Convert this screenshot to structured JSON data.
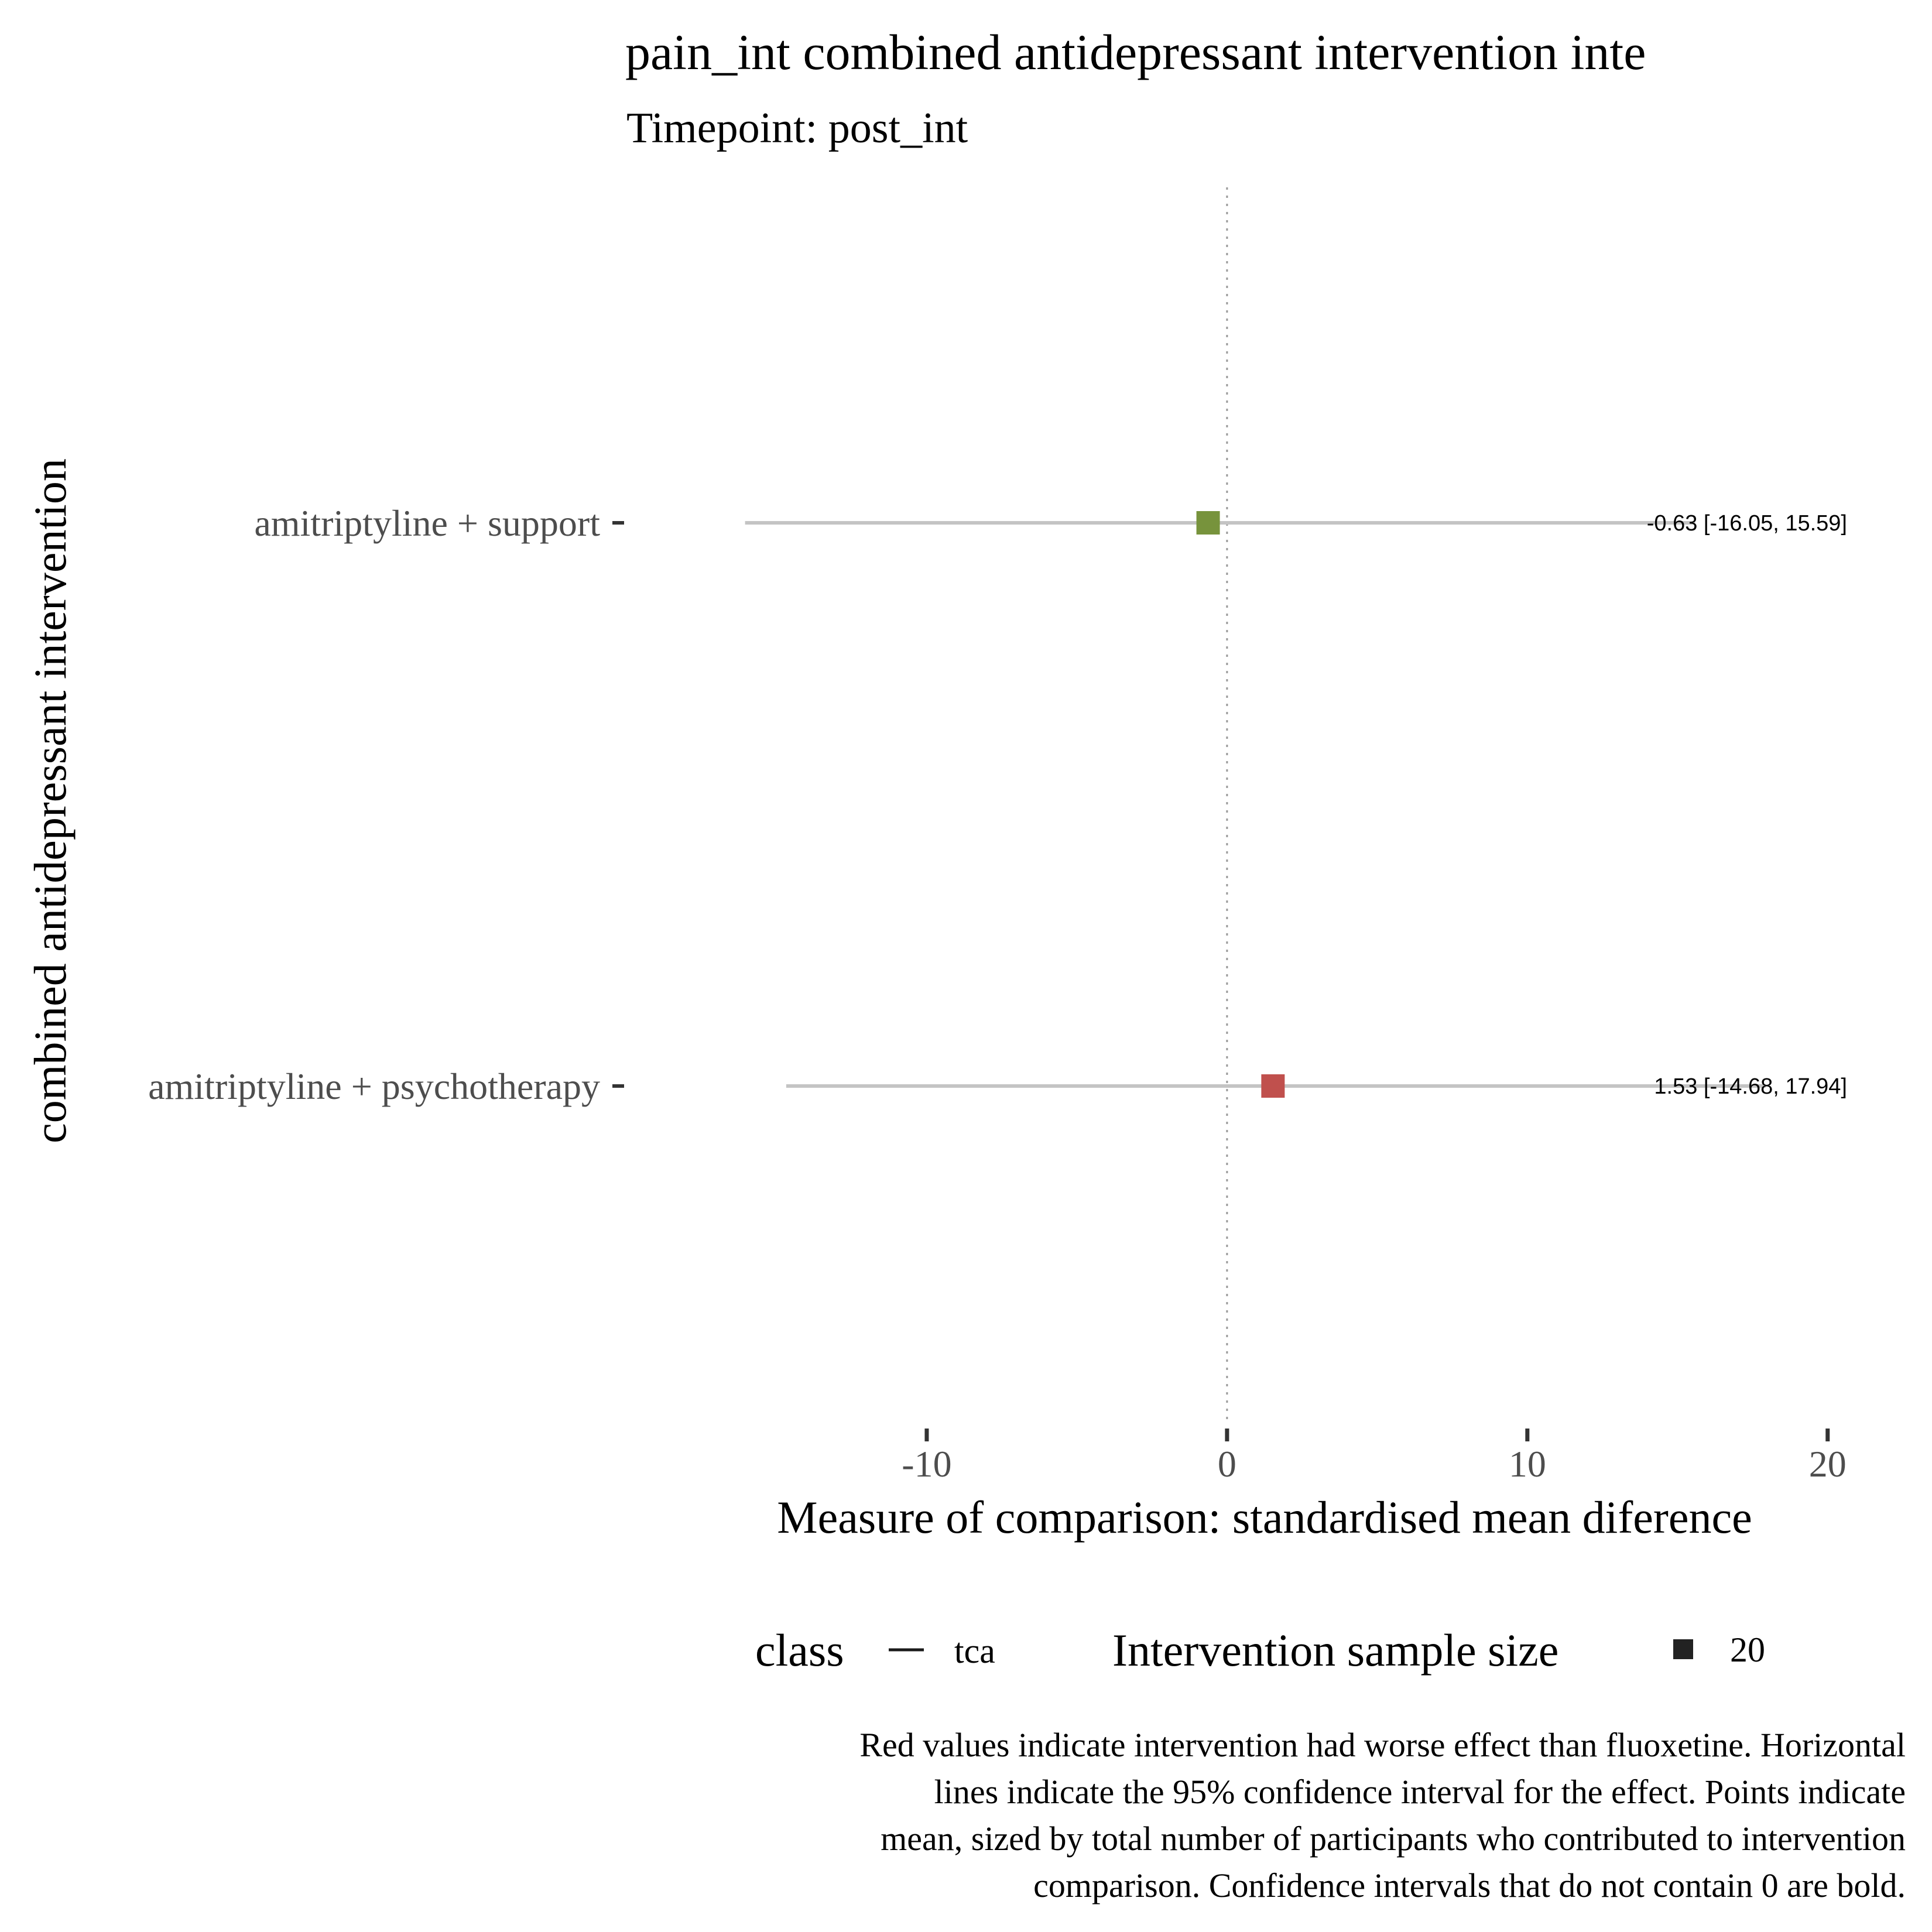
{
  "chart_data": {
    "type": "forest",
    "title": "pain_int combined antidepressant intervention inte",
    "subtitle": "Timepoint: post_int",
    "xlabel": "Measure of comparison: standardised mean diference",
    "ylabel": "combined antidepressant intervention",
    "xlim": [
      -20,
      22.5
    ],
    "x_ticks": [
      -10,
      0,
      10,
      20
    ],
    "x_tick_labels": [
      "-10",
      "0",
      "10",
      "20"
    ],
    "reference_line": 0,
    "grid": false,
    "rows": [
      {
        "label": "amitriptyline + support",
        "mean": -0.63,
        "ci_low": -16.05,
        "ci_high": 15.59,
        "annotation": "-0.63 [-16.05, 15.59]",
        "color": "#77933c"
      },
      {
        "label": "amitriptyline + psychotherapy",
        "mean": 1.53,
        "ci_low": -14.68,
        "ci_high": 17.94,
        "annotation": "1.53 [-14.68, 17.94]",
        "color": "#c0504d"
      }
    ],
    "legend": {
      "position": "bottom",
      "class_title": "class",
      "class_item": "tca",
      "size_title": "Intervention sample size",
      "size_item": "20"
    },
    "caption_lines": [
      "Red values indicate intervention had worse effect than fluoxetine. Horizontal",
      "lines indicate the 95% confidence interval for the effect. Points indicate",
      "mean, sized by total number of participants who contributed to intervention",
      "comparison. Confidence intervals that do not contain 0 are bold."
    ]
  }
}
